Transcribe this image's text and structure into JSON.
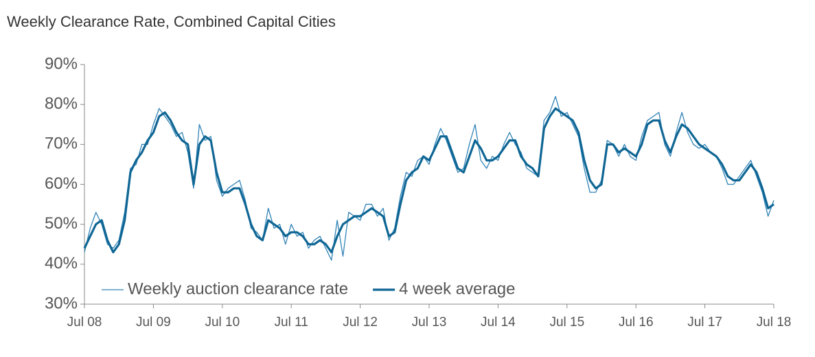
{
  "chart_data": {
    "type": "line",
    "title": "Weekly Clearance Rate, Combined Capital Cities",
    "categories": [
      "Jul 08",
      null,
      null,
      null,
      null,
      null,
      null,
      null,
      null,
      null,
      null,
      null,
      "Jul 09",
      null,
      null,
      null,
      null,
      null,
      null,
      null,
      null,
      null,
      null,
      null,
      "Jul 10",
      null,
      null,
      null,
      null,
      null,
      null,
      null,
      null,
      null,
      null,
      null,
      "Jul 11",
      null,
      null,
      null,
      null,
      null,
      null,
      null,
      null,
      null,
      null,
      null,
      "Jul 12",
      null,
      null,
      null,
      null,
      null,
      null,
      null,
      null,
      null,
      null,
      null,
      "Jul 13",
      null,
      null,
      null,
      null,
      null,
      null,
      null,
      null,
      null,
      null,
      null,
      "Jul 14",
      null,
      null,
      null,
      null,
      null,
      null,
      null,
      null,
      null,
      null,
      null,
      "Jul 15",
      null,
      null,
      null,
      null,
      null,
      null,
      null,
      null,
      null,
      null,
      null,
      "Jul 16",
      null,
      null,
      null,
      null,
      null,
      null,
      null,
      null,
      null,
      null,
      null,
      "Jul 17",
      null,
      null,
      null,
      null,
      null,
      null,
      null,
      null,
      null,
      null,
      null,
      "Jul 18"
    ],
    "series": [
      {
        "name": "Weekly auction clearance rate",
        "color": "#2f82b6",
        "width": 1.3,
        "values": [
          43,
          49,
          53,
          50,
          45,
          44,
          46,
          53,
          64,
          65,
          70,
          70,
          75,
          79,
          77,
          75,
          72,
          73,
          68,
          59,
          75,
          71,
          72,
          61,
          57,
          59,
          60,
          61,
          56,
          49,
          48,
          46,
          54,
          49,
          50,
          45,
          50,
          47,
          48,
          44,
          46,
          47,
          44,
          41,
          51,
          42,
          53,
          52,
          51,
          55,
          55,
          52,
          54,
          46,
          49,
          57,
          63,
          62,
          66,
          67,
          65,
          70,
          74,
          71,
          67,
          63,
          64,
          70,
          75,
          66,
          64,
          67,
          66,
          70,
          73,
          70,
          68,
          64,
          63,
          62,
          76,
          78,
          82,
          77,
          78,
          75,
          72,
          64,
          58,
          58,
          61,
          71,
          70,
          67,
          70,
          67,
          66,
          72,
          76,
          77,
          78,
          70,
          67,
          73,
          78,
          73,
          70,
          69,
          70,
          68,
          67,
          64,
          60,
          60,
          62,
          64,
          66,
          62,
          58,
          52,
          56
        ]
      },
      {
        "name": "4 week average",
        "color": "#0f6694",
        "width": 3.2,
        "values": [
          44,
          47,
          50,
          51,
          46,
          43,
          45,
          51,
          63,
          66,
          68,
          71,
          73,
          77,
          78,
          76,
          73,
          71,
          70,
          60,
          70,
          72,
          71,
          63,
          58,
          58,
          59,
          59,
          55,
          50,
          47,
          46,
          51,
          50,
          49,
          47,
          48,
          48,
          47,
          45,
          45,
          46,
          45,
          43,
          47,
          50,
          51,
          52,
          52,
          53,
          54,
          53,
          52,
          47,
          48,
          55,
          61,
          63,
          64,
          67,
          66,
          69,
          72,
          72,
          68,
          64,
          63,
          67,
          71,
          69,
          66,
          66,
          67,
          69,
          71,
          71,
          67,
          65,
          64,
          62,
          74,
          77,
          79,
          78,
          77,
          76,
          73,
          66,
          61,
          59,
          60,
          70,
          70,
          68,
          69,
          68,
          67,
          70,
          75,
          76,
          76,
          71,
          68,
          72,
          75,
          74,
          72,
          70,
          69,
          68,
          67,
          65,
          62,
          61,
          61,
          63,
          65,
          63,
          59,
          54,
          55
        ]
      }
    ],
    "ylim": [
      30,
      90
    ],
    "yticks": [
      {
        "value": 30,
        "label": "30%"
      },
      {
        "value": 40,
        "label": "40%"
      },
      {
        "value": 50,
        "label": "50%"
      },
      {
        "value": 60,
        "label": "60%"
      },
      {
        "value": 70,
        "label": "70%"
      },
      {
        "value": 80,
        "label": "80%"
      },
      {
        "value": 90,
        "label": "90%"
      }
    ],
    "grid": false,
    "legend": "bottom-left"
  }
}
